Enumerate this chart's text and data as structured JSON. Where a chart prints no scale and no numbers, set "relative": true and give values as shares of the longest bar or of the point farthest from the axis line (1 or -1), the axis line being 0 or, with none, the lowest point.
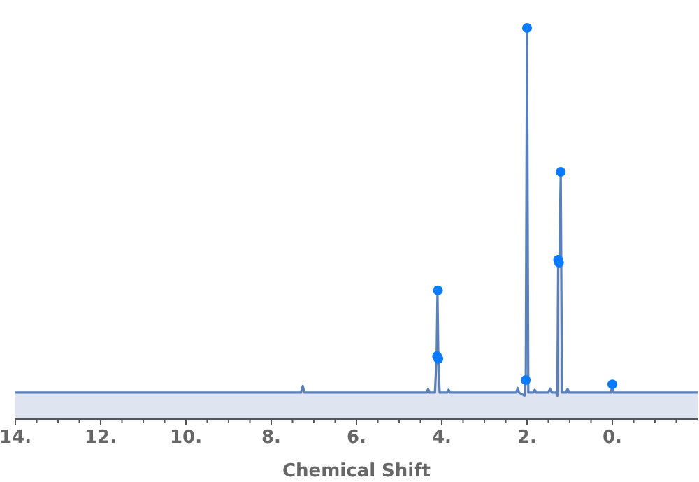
{
  "chart_data": {
    "type": "area",
    "xlabel": "Chemical Shift",
    "relative": true,
    "xlim": [
      14,
      -2
    ],
    "xticks": [
      {
        "value": 14,
        "label": "14."
      },
      {
        "value": 13.5,
        "label": null
      },
      {
        "value": 13,
        "label": null
      },
      {
        "value": 12.5,
        "label": null
      },
      {
        "value": 12,
        "label": "12."
      },
      {
        "value": 11.5,
        "label": null
      },
      {
        "value": 11,
        "label": null
      },
      {
        "value": 10.5,
        "label": null
      },
      {
        "value": 10,
        "label": "10."
      },
      {
        "value": 9.5,
        "label": null
      },
      {
        "value": 9,
        "label": null
      },
      {
        "value": 8.5,
        "label": null
      },
      {
        "value": 8,
        "label": "8."
      },
      {
        "value": 7.5,
        "label": null
      },
      {
        "value": 7,
        "label": null
      },
      {
        "value": 6.5,
        "label": null
      },
      {
        "value": 6,
        "label": "6."
      },
      {
        "value": 5.5,
        "label": null
      },
      {
        "value": 5,
        "label": null
      },
      {
        "value": 4.5,
        "label": null
      },
      {
        "value": 4,
        "label": "4."
      },
      {
        "value": 3.5,
        "label": null
      },
      {
        "value": 3,
        "label": null
      },
      {
        "value": 2.5,
        "label": null
      },
      {
        "value": 2,
        "label": "2."
      },
      {
        "value": 1.5,
        "label": null
      },
      {
        "value": 1,
        "label": null
      },
      {
        "value": 0.5,
        "label": null
      },
      {
        "value": 0,
        "label": "0."
      },
      {
        "value": -0.5,
        "label": null
      },
      {
        "value": -1,
        "label": null
      },
      {
        "value": -1.5,
        "label": null
      }
    ],
    "series": [
      {
        "type": "area",
        "color": "#5b7fb8",
        "x": [
          14,
          7.3,
          7.26,
          7.22,
          4.35,
          4.32,
          4.29,
          4.16,
          4.12,
          4.1,
          4.08,
          4.05,
          4.02,
          3.87,
          3.84,
          3.81,
          2.25,
          2.22,
          2.19,
          2.06,
          2.03,
          2.0,
          1.97,
          1.94,
          1.85,
          1.82,
          1.79,
          1.5,
          1.46,
          1.42,
          1.32,
          1.29,
          1.27,
          1.24,
          1.21,
          1.18,
          1.15,
          1.08,
          1.05,
          1.02,
          0.03,
          0.0,
          -0.03,
          -2
        ],
        "values": [
          0.068,
          0.068,
          0.085,
          0.068,
          0.068,
          0.077,
          0.068,
          0.068,
          0.161,
          0.329,
          0.154,
          0.068,
          0.068,
          0.068,
          0.075,
          0.068,
          0.068,
          0.08,
          0.068,
          0.06,
          0.1,
          1.0,
          0.068,
          0.068,
          0.068,
          0.075,
          0.068,
          0.068,
          0.078,
          0.068,
          0.068,
          0.06,
          0.4,
          0.407,
          0.632,
          0.068,
          0.068,
          0.068,
          0.078,
          0.068,
          0.068,
          0.089,
          0.068,
          0.068
        ]
      },
      {
        "type": "scatter",
        "color": "#0a7bff",
        "marker": "circle",
        "x": [
          2.0,
          1.21,
          1.27,
          1.25,
          4.09,
          4.11,
          4.08,
          2.03,
          0.0
        ],
        "values": [
          1.0,
          0.632,
          0.407,
          0.4,
          0.329,
          0.161,
          0.154,
          0.1,
          0.089
        ]
      }
    ]
  }
}
